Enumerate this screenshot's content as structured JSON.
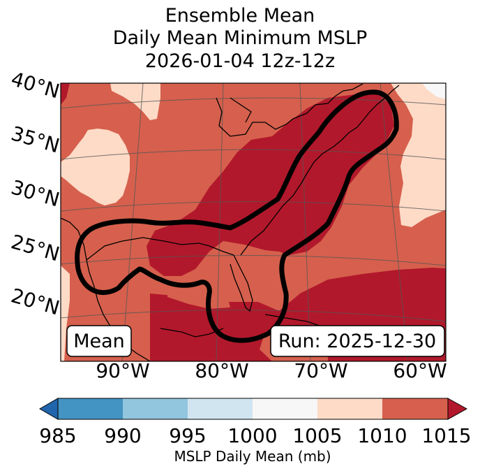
{
  "title": {
    "line1": "Ensemble Mean",
    "line2": "Daily Mean Minimum MSLP",
    "line3": "2026-01-04 12z-12z"
  },
  "map": {
    "lat_labels": [
      "40°N",
      "35°N",
      "30°N",
      "25°N",
      "20°N"
    ],
    "lon_labels": [
      "90°W",
      "80°W",
      "70°W",
      "60°W"
    ],
    "left_box_label": "Mean",
    "right_box_label": "Run: 2025-12-30",
    "fill_colors": {
      "1000-1005": "#f7f7f7",
      "1005-1010": "#fddbc7",
      "1010-1015": "#d6604d",
      "above-1015": "#b2182b"
    },
    "contour_color": "#000000"
  },
  "colorbar": {
    "label": "MSLP Daily Mean (mb)",
    "ticks": [
      "985",
      "990",
      "995",
      "1000",
      "1005",
      "1010",
      "1015"
    ],
    "colors": [
      "#4393c3",
      "#92c5de",
      "#d1e5f0",
      "#f7f7f7",
      "#fddbc7",
      "#d6604d"
    ],
    "under_color": "#2166ac",
    "over_color": "#b2182b"
  }
}
